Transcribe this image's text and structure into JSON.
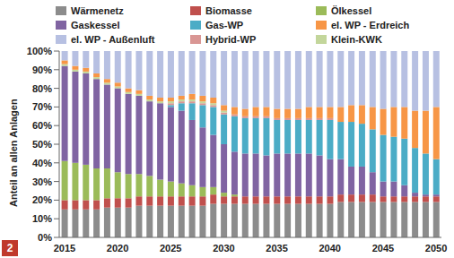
{
  "chart_data": {
    "type": "bar",
    "stacked": true,
    "y_label": "Anteil an allen Anlagen",
    "annotations": [
      "2"
    ],
    "grid": false,
    "categories": [
      "2015",
      null,
      null,
      null,
      null,
      "2020",
      null,
      null,
      null,
      null,
      "2025",
      null,
      null,
      null,
      null,
      "2030",
      null,
      null,
      null,
      null,
      "2035",
      null,
      null,
      null,
      null,
      "2040",
      null,
      null,
      null,
      null,
      "2045",
      null,
      null,
      null,
      null,
      "2050"
    ],
    "ylim": [
      0,
      100
    ],
    "yticks": [
      {
        "value": 0,
        "label": "0%"
      },
      {
        "value": 10,
        "label": "10%"
      },
      {
        "value": 20,
        "label": "20%"
      },
      {
        "value": 30,
        "label": "30%"
      },
      {
        "value": 40,
        "label": "40%"
      },
      {
        "value": 50,
        "label": "50%"
      },
      {
        "value": 60,
        "label": "60%"
      },
      {
        "value": 70,
        "label": "70%"
      },
      {
        "value": 80,
        "label": "80%"
      },
      {
        "value": 90,
        "label": "90%"
      },
      {
        "value": 100,
        "label": "100%"
      }
    ],
    "series": [
      {
        "name": "Wärmenetz",
        "color": "#8c8c8c",
        "values": [
          15,
          15,
          15,
          15,
          16,
          16,
          16,
          17,
          17,
          17,
          17,
          17,
          17,
          17,
          18,
          18,
          18,
          18,
          18,
          18,
          18,
          18,
          18,
          18,
          18,
          18,
          19,
          19,
          19,
          19,
          19,
          19,
          19,
          19,
          19,
          19
        ]
      },
      {
        "name": "Biomasse",
        "color": "#c0504d",
        "values": [
          5,
          5,
          5,
          5,
          5,
          5,
          5,
          5,
          5,
          5,
          5,
          5,
          5,
          5,
          5,
          4,
          4,
          4,
          4,
          4,
          4,
          4,
          4,
          4,
          4,
          4,
          4,
          4,
          4,
          4,
          3,
          3,
          3,
          3,
          3,
          3
        ]
      },
      {
        "name": "Ölkessel",
        "color": "#9bbb59",
        "values": [
          21,
          20,
          19,
          17,
          16,
          14,
          13,
          12,
          11,
          9,
          8,
          7,
          6,
          5,
          4,
          2,
          1,
          0,
          0,
          0,
          0,
          0,
          0,
          0,
          0,
          0,
          0,
          0,
          0,
          0,
          0,
          0,
          0,
          0,
          0,
          0
        ]
      },
      {
        "name": "Gaskessel",
        "color": "#8064a2",
        "values": [
          51,
          49,
          49,
          48,
          45,
          45,
          43,
          42,
          40,
          41,
          40,
          39,
          35,
          32,
          28,
          26,
          23,
          23,
          23,
          22,
          23,
          23,
          23,
          23,
          22,
          20,
          19,
          15,
          15,
          12,
          8,
          8,
          6,
          2,
          1,
          1
        ]
      },
      {
        "name": "Gas-WP",
        "color": "#4bacc6",
        "values": [
          0,
          0,
          0,
          0,
          0,
          0,
          0,
          0,
          0,
          0,
          1,
          4,
          9,
          12,
          15,
          16,
          19,
          19,
          19,
          20,
          18,
          18,
          18,
          18,
          19,
          21,
          20,
          24,
          23,
          23,
          25,
          24,
          25,
          24,
          22,
          19
        ]
      },
      {
        "name": "el. WP - Erdreich",
        "color": "#f79646",
        "values": [
          2,
          2,
          2,
          2,
          2,
          2,
          2,
          2,
          2,
          2,
          2,
          2,
          3,
          3,
          3,
          3,
          4,
          4,
          5,
          5,
          5,
          5,
          5,
          6,
          6,
          6,
          8,
          9,
          10,
          12,
          14,
          16,
          17,
          20,
          23,
          28
        ]
      },
      {
        "name": "el. WP - Außenluft",
        "color": "#b7c0e2",
        "values": [
          5,
          8,
          9,
          12,
          15,
          17,
          20,
          21,
          24,
          25,
          25,
          24,
          23,
          24,
          25,
          29,
          30,
          31,
          30,
          30,
          31,
          31,
          31,
          30,
          30,
          30,
          30,
          29,
          29,
          30,
          31,
          30,
          30,
          32,
          32,
          30
        ]
      },
      {
        "name": "Hybrid-WP",
        "color": "#d99694",
        "values": [
          0,
          0,
          0,
          0,
          0,
          0,
          0,
          0,
          0,
          0,
          1,
          1,
          1,
          1,
          1,
          1,
          1,
          1,
          1,
          1,
          1,
          1,
          1,
          1,
          1,
          1,
          0,
          0,
          0,
          0,
          0,
          0,
          0,
          0,
          0,
          0
        ]
      },
      {
        "name": "Klein-KWK",
        "color": "#c3d69b",
        "values": [
          1,
          1,
          1,
          1,
          1,
          1,
          1,
          1,
          1,
          1,
          1,
          1,
          1,
          1,
          1,
          1,
          0,
          0,
          0,
          0,
          0,
          0,
          0,
          0,
          0,
          0,
          0,
          0,
          0,
          0,
          0,
          0,
          0,
          0,
          0,
          0
        ]
      }
    ]
  }
}
